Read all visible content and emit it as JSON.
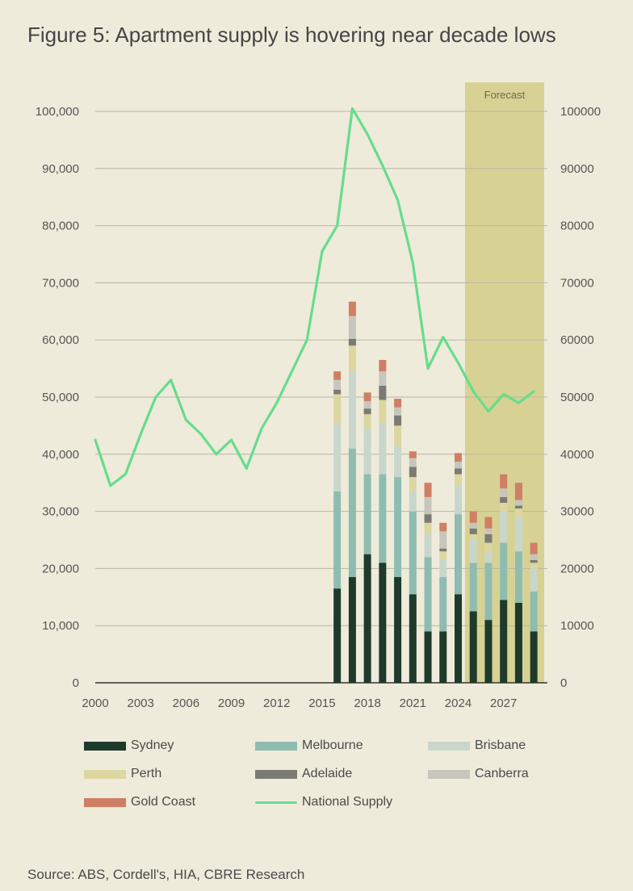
{
  "title": "Figure 5:  Apartment supply is hovering near decade lows",
  "source": "Source: ABS, Cordell's, HIA, CBRE Research",
  "chart_data": {
    "type": "bar",
    "stacked": true,
    "forecast_label": "Forecast",
    "forecast_start": 2025,
    "y_left_ticks": [
      "0",
      "10,000",
      "20,000",
      "30,000",
      "40,000",
      "50,000",
      "60,000",
      "70,000",
      "80,000",
      "90,000",
      "100,000"
    ],
    "y_right_ticks": [
      "0",
      "10000",
      "20000",
      "30000",
      "40000",
      "50000",
      "60000",
      "70000",
      "80000",
      "90000",
      "100000"
    ],
    "ylim": [
      0,
      100000
    ],
    "x_ticks": [
      "2000",
      "2003",
      "2006",
      "2009",
      "2012",
      "2015",
      "2018",
      "2021",
      "2024",
      "2027"
    ],
    "grid": "horizontal",
    "legend_position": "bottom",
    "colors": {
      "Sydney": "#1d3a2b",
      "Melbourne": "#8fbcb0",
      "Brisbane": "#c9d6cc",
      "Perth": "#dcd6a0",
      "Adelaide": "#7b7b73",
      "Canberra": "#c7c6bd",
      "Gold Coast": "#cf7f63",
      "National Supply": "#66dd8c",
      "forecast_band": "#d7d294"
    },
    "bar_categories": [
      2016,
      2017,
      2018,
      2019,
      2020,
      2021,
      2022,
      2023,
      2024,
      2025,
      2026,
      2027,
      2028,
      2029
    ],
    "series": [
      {
        "name": "Sydney",
        "values": [
          16500,
          18500,
          22500,
          21000,
          18500,
          15500,
          9000,
          9000,
          15500,
          12500,
          11000,
          14500,
          14000,
          9000
        ]
      },
      {
        "name": "Melbourne",
        "values": [
          17000,
          22500,
          14000,
          15500,
          17500,
          14500,
          13000,
          9500,
          14000,
          8500,
          10000,
          10000,
          9000,
          7000
        ]
      },
      {
        "name": "Brisbane",
        "values": [
          12000,
          13500,
          8000,
          9000,
          5500,
          3500,
          4000,
          3000,
          5000,
          4000,
          2000,
          5500,
          6000,
          4000
        ]
      },
      {
        "name": "Perth",
        "values": [
          5000,
          4500,
          2500,
          4000,
          3500,
          2500,
          2000,
          1500,
          2000,
          1000,
          1500,
          1500,
          1500,
          1000
        ]
      },
      {
        "name": "Adelaide",
        "values": [
          800,
          1200,
          1000,
          2500,
          1800,
          1800,
          1500,
          500,
          1000,
          1000,
          1500,
          1000,
          500,
          500
        ]
      },
      {
        "name": "Canberra",
        "values": [
          1700,
          4000,
          1300,
          2500,
          1400,
          1500,
          3000,
          3000,
          1200,
          1000,
          1000,
          1500,
          1000,
          1000
        ]
      },
      {
        "name": "Gold Coast",
        "values": [
          1500,
          2500,
          1500,
          2000,
          1500,
          1200,
          2500,
          1500,
          1500,
          2000,
          2000,
          2500,
          3000,
          2000
        ]
      }
    ],
    "line_series": {
      "name": "National Supply",
      "x": [
        2000,
        2001,
        2002,
        2003,
        2004,
        2005,
        2006,
        2007,
        2008,
        2009,
        2010,
        2011,
        2012,
        2013,
        2014,
        2015,
        2016,
        2017,
        2018,
        2019,
        2020,
        2021,
        2022,
        2023,
        2024,
        2025,
        2026,
        2027,
        2028,
        2029
      ],
      "values": [
        42500,
        34500,
        36500,
        43500,
        50000,
        53000,
        46000,
        43500,
        40000,
        42500,
        37500,
        44500,
        49000,
        54500,
        60000,
        75500,
        80000,
        100500,
        96000,
        90500,
        84500,
        73500,
        55000,
        60500,
        56000,
        51000,
        47500,
        50500,
        49000,
        51000
      ]
    }
  }
}
